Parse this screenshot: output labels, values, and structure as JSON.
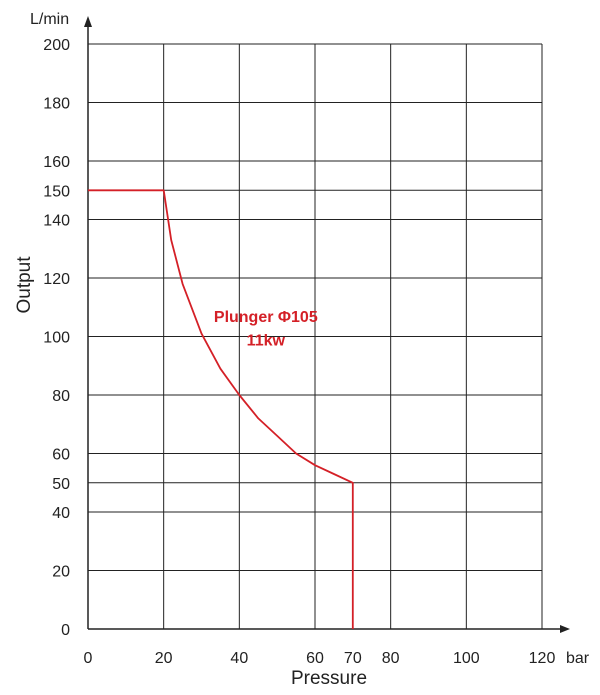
{
  "chart_data": {
    "type": "line",
    "title": "",
    "xlabel": "Pressure",
    "ylabel": "Output",
    "x_unit": "bar",
    "y_unit": "L/min",
    "xlim": [
      0,
      120
    ],
    "ylim": [
      0,
      200
    ],
    "x_ticks": [
      0,
      20,
      40,
      60,
      70,
      80,
      100,
      120
    ],
    "y_ticks": [
      0,
      20,
      40,
      50,
      60,
      80,
      100,
      120,
      140,
      150,
      160,
      180,
      200
    ],
    "x_grid": [
      0,
      20,
      40,
      60,
      80,
      100,
      120
    ],
    "y_grid": [
      0,
      20,
      40,
      50,
      60,
      80,
      100,
      120,
      140,
      150,
      160,
      180,
      200
    ],
    "grid": true,
    "series": [
      {
        "color": "#d42027",
        "points": [
          [
            0,
            150
          ],
          [
            20,
            150
          ],
          [
            22,
            133
          ],
          [
            25,
            118
          ],
          [
            30,
            101
          ],
          [
            35,
            89
          ],
          [
            40,
            80
          ],
          [
            45,
            72
          ],
          [
            50,
            66
          ],
          [
            55,
            60
          ],
          [
            60,
            56
          ],
          [
            65,
            53
          ],
          [
            70,
            50
          ],
          [
            70,
            0
          ]
        ]
      }
    ],
    "annotations": [
      {
        "text": "Plunger Φ105",
        "x": 47,
        "y": 105,
        "color": "#d42027"
      },
      {
        "text": "11kw",
        "x": 47,
        "y": 97,
        "color": "#d42027"
      }
    ]
  }
}
